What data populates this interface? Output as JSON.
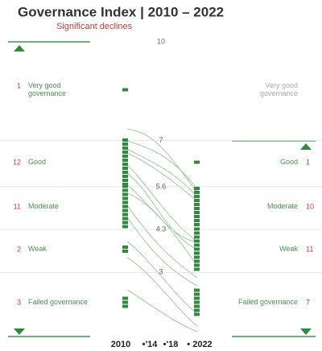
{
  "header": {
    "title": "Governance Index | 2010 – 2022",
    "subtitle": "Significant declines"
  },
  "scale": {
    "ticks": [
      10,
      7,
      5.6,
      4.3,
      3
    ]
  },
  "years": [
    "2010",
    "•'14",
    "•'18",
    "• 2022"
  ],
  "categories": [
    {
      "label": "Very good governance",
      "count_2010": 1
    },
    {
      "label": "Good",
      "count_2010": 12,
      "count_2022": 1
    },
    {
      "label": "Moderate",
      "count_2010": 11,
      "count_2022": 10
    },
    {
      "label": "Weak",
      "count_2010": 2,
      "count_2022": 11
    },
    {
      "label": "Failed governance",
      "count_2010": 3,
      "count_2022": 7
    }
  ]
}
